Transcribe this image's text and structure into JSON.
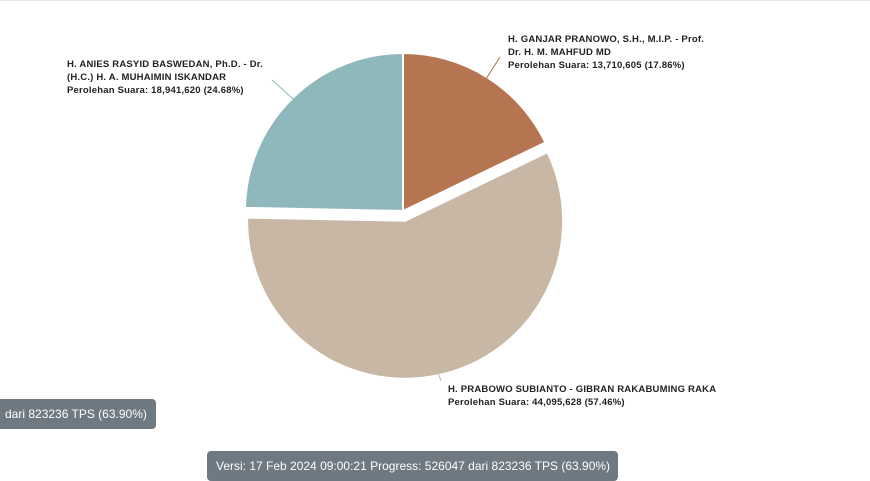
{
  "chart_data": {
    "type": "pie",
    "slices": [
      {
        "name_lines": [
          "H. GANJAR PRANOWO, S.H., M.I.P. - Prof.",
          "Dr. H. M. MAHFUD MD"
        ],
        "votes_text": "Perolehan Suara: 13,710,605 (17.86%)",
        "value": 13710605,
        "percent": 17.86,
        "color": "#b57551"
      },
      {
        "name_lines": [
          "H. PRABOWO SUBIANTO - GIBRAN RAKABUMING RAKA"
        ],
        "votes_text": "Perolehan Suara: 44,095,628 (57.46%)",
        "value": 44095628,
        "percent": 57.46,
        "color": "#c8b7a4"
      },
      {
        "name_lines": [
          "H. ANIES RASYID BASWEDAN, Ph.D. - Dr.",
          "(H.C.) H. A. MUHAIMIN ISKANDAR"
        ],
        "votes_text": "Perolehan Suara: 18,941,620 (24.68%)",
        "value": 18941620,
        "percent": 24.68,
        "color": "#8fb8bd"
      }
    ]
  },
  "badges": {
    "left_text": "dari 823236 TPS (63.90%)",
    "bottom_text": "Versi: 17 Feb 2024 09:00:21 Progress: 526047 dari 823236 TPS (63.90%)"
  }
}
